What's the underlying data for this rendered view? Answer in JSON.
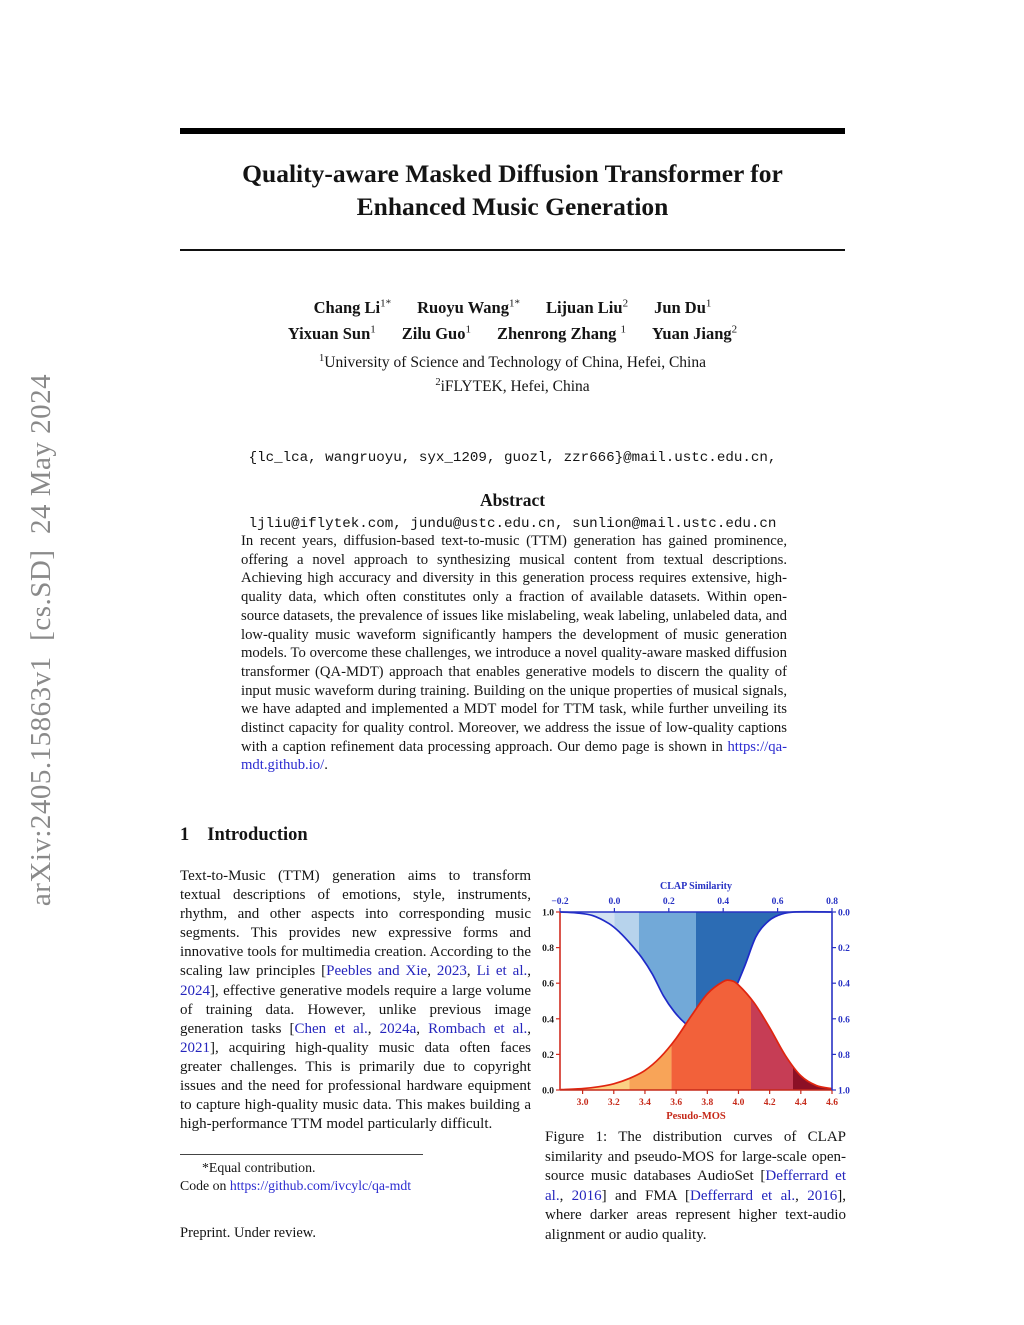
{
  "watermark": {
    "text": "arXiv:2405.15863v1  [cs.SD]  24 May 2024"
  },
  "title": {
    "line1": "Quality-aware Masked Diffusion Transformer for",
    "line2": "Enhanced Music Generation"
  },
  "authors": {
    "row1": [
      {
        "name": "Chang Li",
        "sup": "1*"
      },
      {
        "name": "Ruoyu Wang",
        "sup": "1*"
      },
      {
        "name": "Lijuan Liu",
        "sup": "2"
      },
      {
        "name": "Jun Du",
        "sup": "1"
      }
    ],
    "row2": [
      {
        "name": "Yixuan Sun",
        "sup": "1"
      },
      {
        "name": "Zilu Guo",
        "sup": "1"
      },
      {
        "name": "Zhenrong Zhang ",
        "sup": "1"
      },
      {
        "name": "Yuan Jiang",
        "sup": "2"
      }
    ]
  },
  "affiliations": [
    {
      "sup": "1",
      "text": "University of Science and Technology of China, Hefei, China"
    },
    {
      "sup": "2",
      "text": "iFLYTEK, Hefei, China"
    }
  ],
  "emails": [
    "{lc_lca, wangruoyu, syx_1209, guozl, zzr666}@mail.ustc.edu.cn,",
    "ljliu@iflytek.com, jundu@ustc.edu.cn, sunlion@mail.ustc.edu.cn"
  ],
  "abstract": {
    "heading": "Abstract",
    "runs": [
      {
        "t": "In recent years, diffusion-based text-to-music (TTM) generation has gained prominence, offering a novel approach to synthesizing musical content from textual descriptions. Achieving high accuracy and diversity in this generation process requires extensive, high-quality data, which often constitutes only a fraction of available datasets. Within open-source datasets, the prevalence of issues like mislabeling, weak labeling, unlabeled data, and low-quality music waveform significantly hampers the development of music generation models. To overcome these challenges, we introduce a novel quality-aware masked diffusion transformer (QA-MDT) approach that enables generative models to discern the quality of input music waveform during training. Building on the unique properties of musical signals, we have adapted and implemented a MDT model for TTM task, while further unveiling its distinct capacity for quality control. Moreover, we address the issue of low-quality captions with a caption refinement data processing approach. Our demo page is shown in "
      },
      {
        "t": "https://qa-mdt.github.io/",
        "link": true,
        "url": true,
        "name": "demo-url-link"
      },
      {
        "t": "."
      }
    ]
  },
  "section1": {
    "number": "1",
    "title": "Introduction"
  },
  "intro": {
    "runs": [
      {
        "t": "Text-to-Music (TTM) generation aims to transform textual descriptions of emotions, style, instruments, rhythm, and other aspects into corresponding music segments. This provides new expressive forms and innovative tools for multimedia creation. According to the scaling law principles ["
      },
      {
        "t": "Peebles and Xie",
        "link": true,
        "name": "citation-link"
      },
      {
        "t": ", "
      },
      {
        "t": "2023",
        "link": true,
        "name": "citation-link"
      },
      {
        "t": ", "
      },
      {
        "t": "Li et al.",
        "link": true,
        "name": "citation-link"
      },
      {
        "t": ", "
      },
      {
        "t": "2024",
        "link": true,
        "name": "citation-link"
      },
      {
        "t": "], effective generative models require a large volume of training data. However, unlike previous image generation tasks  ["
      },
      {
        "t": "Chen et al.",
        "link": true,
        "name": "citation-link"
      },
      {
        "t": ", "
      },
      {
        "t": "2024a",
        "link": true,
        "name": "citation-link"
      },
      {
        "t": ", "
      },
      {
        "t": "Rombach et al.",
        "link": true,
        "name": "citation-link"
      },
      {
        "t": ", "
      },
      {
        "t": "2021",
        "link": true,
        "name": "citation-link"
      },
      {
        "t": "], acquiring high-quality music data often faces greater challenges. This is primarily due to copyright issues and the need for professional hardware equipment to capture high-quality music data. This makes building a high-performance TTM model particularly difficult."
      }
    ]
  },
  "figure_caption": {
    "runs": [
      {
        "t": "Figure 1: The distribution curves of CLAP similarity and pseudo-MOS for large-scale open-source music databases AudioSet ["
      },
      {
        "t": "Defferrard et al.",
        "link": true,
        "name": "citation-link"
      },
      {
        "t": ", "
      },
      {
        "t": "2016",
        "link": true,
        "name": "citation-link"
      },
      {
        "t": "] and FMA ["
      },
      {
        "t": "Defferrard et al.",
        "link": true,
        "name": "citation-link"
      },
      {
        "t": ", "
      },
      {
        "t": "2016",
        "link": true,
        "name": "citation-link"
      },
      {
        "t": "], where darker areas represent higher text-audio alignment or audio quality."
      }
    ]
  },
  "footnote": {
    "line1": "*Equal contribution.",
    "line2_runs": [
      {
        "t": "Code on "
      },
      {
        "t": "https://github.com/ivcylc/qa-mdt",
        "link": true,
        "url": true,
        "name": "code-url-link"
      }
    ]
  },
  "preprint": "Preprint. Under review.",
  "chart_data": {
    "type": "area",
    "top_axis": {
      "title": "CLAP Similarity",
      "range": [
        -0.2,
        0.8
      ],
      "ticks": [
        -0.2,
        0.0,
        0.2,
        0.4,
        0.6,
        0.8
      ],
      "labels": [
        "−0.2",
        "0.0",
        "0.2",
        "0.4",
        "0.6",
        "0.8"
      ],
      "color": "#2832c4"
    },
    "bottom_axis": {
      "title": "Pesudo-MOS",
      "range": [
        2.855,
        4.6
      ],
      "ticks": [
        3.0,
        3.2,
        3.4,
        3.6,
        3.8,
        4.0,
        4.2,
        4.4,
        4.6
      ],
      "labels": [
        "3.0",
        "3.2",
        "3.4",
        "3.6",
        "3.8",
        "4.0",
        "4.2",
        "4.4",
        "4.6"
      ],
      "color": "#c62a1a"
    },
    "left_axis": {
      "range": [
        0,
        1
      ],
      "ticks": [
        1.0,
        0.8,
        0.6,
        0.4,
        0.2,
        0.0
      ],
      "labels": [
        "1.0",
        "0.8",
        "0.6",
        "0.4",
        "0.2",
        "0.0"
      ],
      "color": "#1a1a1a",
      "spine": "#d02c20"
    },
    "right_axis": {
      "range": [
        0,
        1
      ],
      "ticks": [
        0.0,
        0.2,
        0.4,
        0.6,
        0.8,
        1.0
      ],
      "labels": [
        "0.0",
        "0.2",
        "0.4",
        "0.6",
        "0.8",
        "1.0"
      ],
      "color": "#2832c4",
      "spine": "#2832c4"
    },
    "series": [
      {
        "name": "clap_similarity_distribution",
        "axis": "top",
        "fill_to": "top",
        "stroke": "#1f2ac8",
        "x": [
          -0.2,
          -0.14,
          -0.08,
          -0.02,
          0.02,
          0.06,
          0.1,
          0.14,
          0.18,
          0.22,
          0.26,
          0.3,
          0.33,
          0.36,
          0.4,
          0.44,
          0.48,
          0.52,
          0.56,
          0.6,
          0.66,
          0.8
        ],
        "y": [
          1.0,
          0.995,
          0.98,
          0.935,
          0.885,
          0.82,
          0.745,
          0.65,
          0.53,
          0.44,
          0.375,
          0.335,
          0.325,
          0.345,
          0.43,
          0.555,
          0.7,
          0.86,
          0.94,
          0.98,
          1.0,
          1.0
        ],
        "bands": [
          {
            "from": -0.2,
            "to": 0.0,
            "color": "#d3e2f2"
          },
          {
            "from": 0.0,
            "to": 0.09,
            "color": "#b7d3ec"
          },
          {
            "from": 0.09,
            "to": 0.3,
            "color": "#72a9d8"
          },
          {
            "from": 0.3,
            "to": 0.8,
            "color": "#2c6cb4"
          }
        ]
      },
      {
        "name": "pseudo_mos_distribution",
        "axis": "bottom",
        "fill_to": "bottom",
        "stroke": "#e0250f",
        "x": [
          2.86,
          3.0,
          3.1,
          3.2,
          3.3,
          3.4,
          3.5,
          3.6,
          3.7,
          3.8,
          3.9,
          3.95,
          4.0,
          4.1,
          4.2,
          4.3,
          4.4,
          4.5,
          4.6
        ],
        "y": [
          0.002,
          0.008,
          0.018,
          0.035,
          0.065,
          0.11,
          0.185,
          0.29,
          0.42,
          0.54,
          0.608,
          0.615,
          0.59,
          0.49,
          0.35,
          0.195,
          0.08,
          0.025,
          0.008
        ],
        "bands": [
          {
            "from": 2.855,
            "to": 3.3,
            "color": "#fbd184"
          },
          {
            "from": 3.3,
            "to": 3.57,
            "color": "#f8a458"
          },
          {
            "from": 3.57,
            "to": 4.08,
            "color": "#f2613a"
          },
          {
            "from": 4.08,
            "to": 4.35,
            "color": "#c63d55"
          },
          {
            "from": 4.35,
            "to": 4.6,
            "color": "#8c1026"
          }
        ]
      }
    ]
  }
}
